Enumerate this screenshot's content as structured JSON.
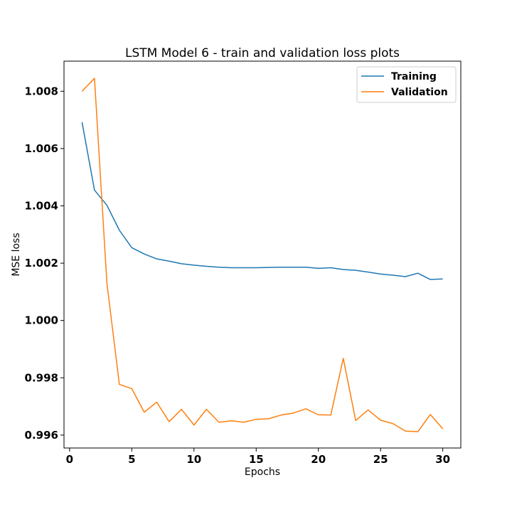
{
  "chart_data": {
    "type": "line",
    "title": "LSTM Model 6 - train and validation loss plots",
    "xlabel": "Epochs",
    "ylabel": "MSE loss",
    "xlim": [
      -0.45,
      31.45
    ],
    "ylim": [
      0.99555,
      1.00905
    ],
    "xticks": [
      0,
      5,
      10,
      15,
      20,
      25,
      30
    ],
    "yticks": [
      0.996,
      0.998,
      1.0,
      1.002,
      1.004,
      1.006,
      1.008
    ],
    "ytick_labels": [
      "0.996",
      "0.998",
      "1.000",
      "1.002",
      "1.004",
      "1.006",
      "1.008"
    ],
    "x": [
      1,
      2,
      3,
      4,
      5,
      6,
      7,
      8,
      9,
      10,
      11,
      12,
      13,
      14,
      15,
      16,
      17,
      18,
      19,
      20,
      21,
      22,
      23,
      24,
      25,
      26,
      27,
      28,
      29,
      30
    ],
    "series": [
      {
        "name": "Training",
        "color": "#1f77b4",
        "values": [
          1.00692,
          1.00455,
          1.00402,
          1.00315,
          1.00254,
          1.00232,
          1.00215,
          1.00207,
          1.00198,
          1.00193,
          1.00189,
          1.00186,
          1.00184,
          1.00184,
          1.00184,
          1.00185,
          1.00186,
          1.00186,
          1.00186,
          1.00182,
          1.00184,
          1.00178,
          1.00175,
          1.00169,
          1.00162,
          1.00158,
          1.00153,
          1.00165,
          1.00143,
          1.00145
        ]
      },
      {
        "name": "Validation",
        "color": "#ff7f0e",
        "values": [
          1.008,
          1.00845,
          1.0013,
          0.99777,
          0.99762,
          0.9968,
          0.99715,
          0.99647,
          0.9969,
          0.99635,
          0.9969,
          0.99645,
          0.9965,
          0.99645,
          0.99655,
          0.99657,
          0.9967,
          0.99677,
          0.99692,
          0.99671,
          0.9967,
          0.99868,
          0.99651,
          0.99688,
          0.99652,
          0.9964,
          0.99614,
          0.99612,
          0.99672,
          0.99622
        ]
      }
    ],
    "legend": "top-right",
    "grid": false
  }
}
